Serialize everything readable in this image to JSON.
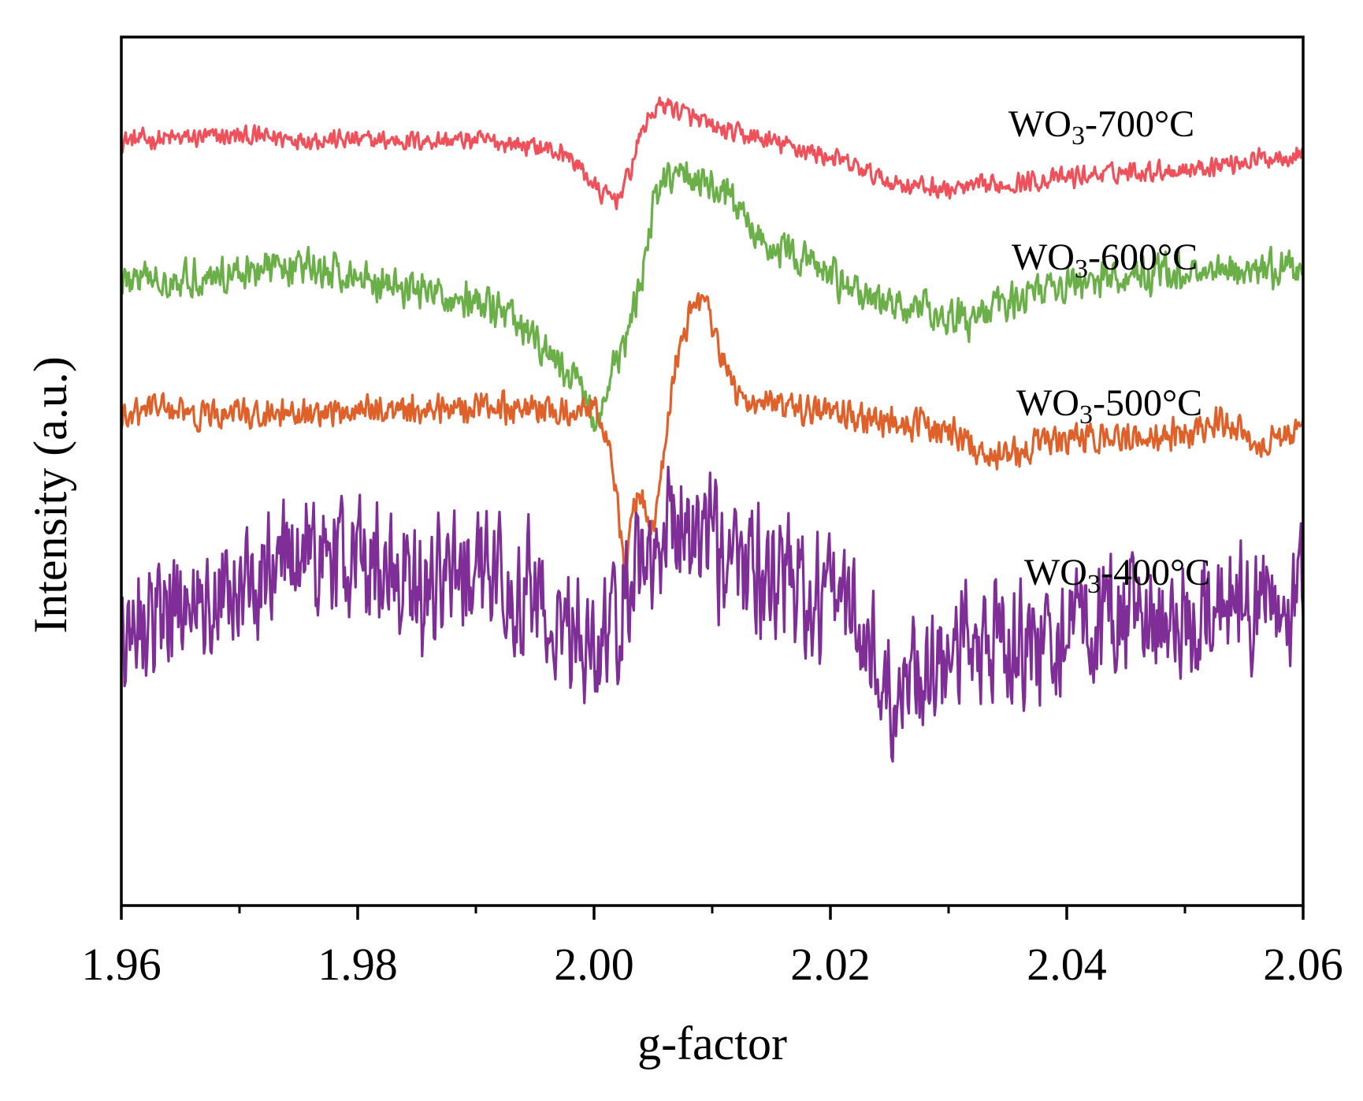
{
  "chart_data": {
    "type": "line",
    "title": "",
    "xlabel": "g-factor",
    "ylabel": "Intensity (a.u.)",
    "xlim": [
      1.96,
      2.06
    ],
    "ylim": [
      -10.5,
      10.5
    ],
    "x_ticks_major": [
      "1.96",
      "1.98",
      "2.00",
      "2.02",
      "2.04",
      "2.06"
    ],
    "x_ticks_major_values": [
      1.96,
      1.98,
      2.0,
      2.02,
      2.04,
      2.06
    ],
    "x_ticks_minor_values": [
      1.97,
      1.99,
      2.01,
      2.03,
      2.05
    ],
    "y_ticks": [],
    "grid": false,
    "legend": "inline-right",
    "series": [
      {
        "name": "WO3-700°C",
        "label_main": "WO",
        "label_sub": "3",
        "label_tail": "-700°C",
        "color": "#F0505A",
        "noise": 0.3,
        "points": [
          [
            1.96,
            8.0
          ],
          [
            1.97,
            8.1
          ],
          [
            1.98,
            8.0
          ],
          [
            1.99,
            8.0
          ],
          [
            1.994,
            7.9
          ],
          [
            1.996,
            7.8
          ],
          [
            1.998,
            7.6
          ],
          [
            1.9995,
            7.1
          ],
          [
            2.0005,
            6.7
          ],
          [
            2.002,
            6.6
          ],
          [
            2.003,
            7.2
          ],
          [
            2.004,
            8.2
          ],
          [
            2.005,
            8.7
          ],
          [
            2.006,
            8.9
          ],
          [
            2.008,
            8.6
          ],
          [
            2.01,
            8.3
          ],
          [
            2.013,
            8.1
          ],
          [
            2.016,
            7.9
          ],
          [
            2.02,
            7.6
          ],
          [
            2.025,
            7.0
          ],
          [
            2.03,
            6.8
          ],
          [
            2.035,
            6.95
          ],
          [
            2.04,
            7.1
          ],
          [
            2.045,
            7.25
          ],
          [
            2.05,
            7.3
          ],
          [
            2.055,
            7.5
          ],
          [
            2.06,
            7.7
          ]
        ]
      },
      {
        "name": "WO3-600°C",
        "label_main": "WO",
        "label_sub": "3",
        "label_tail": "-600°C",
        "color": "#6AAF47",
        "noise": 0.55,
        "points": [
          [
            1.96,
            4.6
          ],
          [
            1.966,
            4.7
          ],
          [
            1.97,
            4.8
          ],
          [
            1.974,
            5.0
          ],
          [
            1.978,
            4.8
          ],
          [
            1.982,
            4.6
          ],
          [
            1.986,
            4.3
          ],
          [
            1.99,
            4.1
          ],
          [
            1.993,
            3.7
          ],
          [
            1.995,
            3.1
          ],
          [
            1.997,
            2.6
          ],
          [
            1.999,
            2.0
          ],
          [
            2.0003,
            1.1
          ],
          [
            2.0015,
            2.3
          ],
          [
            2.003,
            3.4
          ],
          [
            2.004,
            4.6
          ],
          [
            2.005,
            6.4
          ],
          [
            2.006,
            7.0
          ],
          [
            2.008,
            7.2
          ],
          [
            2.01,
            6.9
          ],
          [
            2.012,
            6.4
          ],
          [
            2.015,
            5.4
          ],
          [
            2.018,
            5.1
          ],
          [
            2.02,
            4.7
          ],
          [
            2.024,
            4.1
          ],
          [
            2.028,
            3.9
          ],
          [
            2.032,
            3.6
          ],
          [
            2.036,
            4.3
          ],
          [
            2.042,
            4.6
          ],
          [
            2.048,
            4.8
          ],
          [
            2.054,
            4.9
          ],
          [
            2.06,
            4.9
          ]
        ]
      },
      {
        "name": "WO3-500°C",
        "label_main": "WO",
        "label_sub": "3",
        "label_tail": "-500°C",
        "color": "#E0602A",
        "noise": 0.45,
        "points": [
          [
            1.96,
            1.2
          ],
          [
            1.963,
            1.6
          ],
          [
            1.966,
            1.3
          ],
          [
            1.97,
            1.4
          ],
          [
            1.975,
            1.3
          ],
          [
            1.98,
            1.5
          ],
          [
            1.985,
            1.5
          ],
          [
            1.99,
            1.6
          ],
          [
            1.995,
            1.5
          ],
          [
            1.998,
            1.4
          ],
          [
            2.0,
            1.7
          ],
          [
            2.0005,
            1.4
          ],
          [
            2.001,
            0.9
          ],
          [
            2.002,
            -0.6
          ],
          [
            2.0027,
            -2.9
          ],
          [
            2.0033,
            -0.6
          ],
          [
            2.004,
            -0.6
          ],
          [
            2.005,
            -1.4
          ],
          [
            2.0055,
            -0.6
          ],
          [
            2.006,
            0.7
          ],
          [
            2.007,
            2.7
          ],
          [
            2.0085,
            4.2
          ],
          [
            2.0095,
            4.0
          ],
          [
            2.011,
            2.7
          ],
          [
            2.012,
            1.8
          ],
          [
            2.014,
            1.7
          ],
          [
            2.016,
            1.5
          ],
          [
            2.02,
            1.4
          ],
          [
            2.025,
            1.2
          ],
          [
            2.03,
            1.0
          ],
          [
            2.034,
            0.3
          ],
          [
            2.038,
            0.7
          ],
          [
            2.045,
            0.8
          ],
          [
            2.05,
            0.9
          ],
          [
            2.053,
            1.2
          ],
          [
            2.056,
            0.7
          ],
          [
            2.06,
            0.9
          ]
        ]
      },
      {
        "name": "WO3-400°C",
        "label_main": "WO",
        "label_sub": "3",
        "label_tail": "-400°C",
        "color": "#7E2E96",
        "noise": 1.9,
        "points": [
          [
            1.96,
            -3.6
          ],
          [
            1.965,
            -3.3
          ],
          [
            1.97,
            -2.7
          ],
          [
            1.975,
            -2.0
          ],
          [
            1.98,
            -2.2
          ],
          [
            1.985,
            -2.7
          ],
          [
            1.99,
            -2.2
          ],
          [
            1.995,
            -3.0
          ],
          [
            1.999,
            -4.0
          ],
          [
            2.0003,
            -5.0
          ],
          [
            2.001,
            -4.0
          ],
          [
            2.003,
            -2.6
          ],
          [
            2.005,
            -1.6
          ],
          [
            2.007,
            -1.0
          ],
          [
            2.009,
            -1.5
          ],
          [
            2.012,
            -2.2
          ],
          [
            2.016,
            -2.6
          ],
          [
            2.02,
            -3.0
          ],
          [
            2.022,
            -3.4
          ],
          [
            2.024,
            -4.8
          ],
          [
            2.025,
            -5.6
          ],
          [
            2.027,
            -4.8
          ],
          [
            2.03,
            -4.5
          ],
          [
            2.035,
            -4.2
          ],
          [
            2.04,
            -3.9
          ],
          [
            2.045,
            -3.6
          ],
          [
            2.05,
            -3.4
          ],
          [
            2.055,
            -3.3
          ],
          [
            2.06,
            -3.0
          ]
        ]
      }
    ]
  }
}
